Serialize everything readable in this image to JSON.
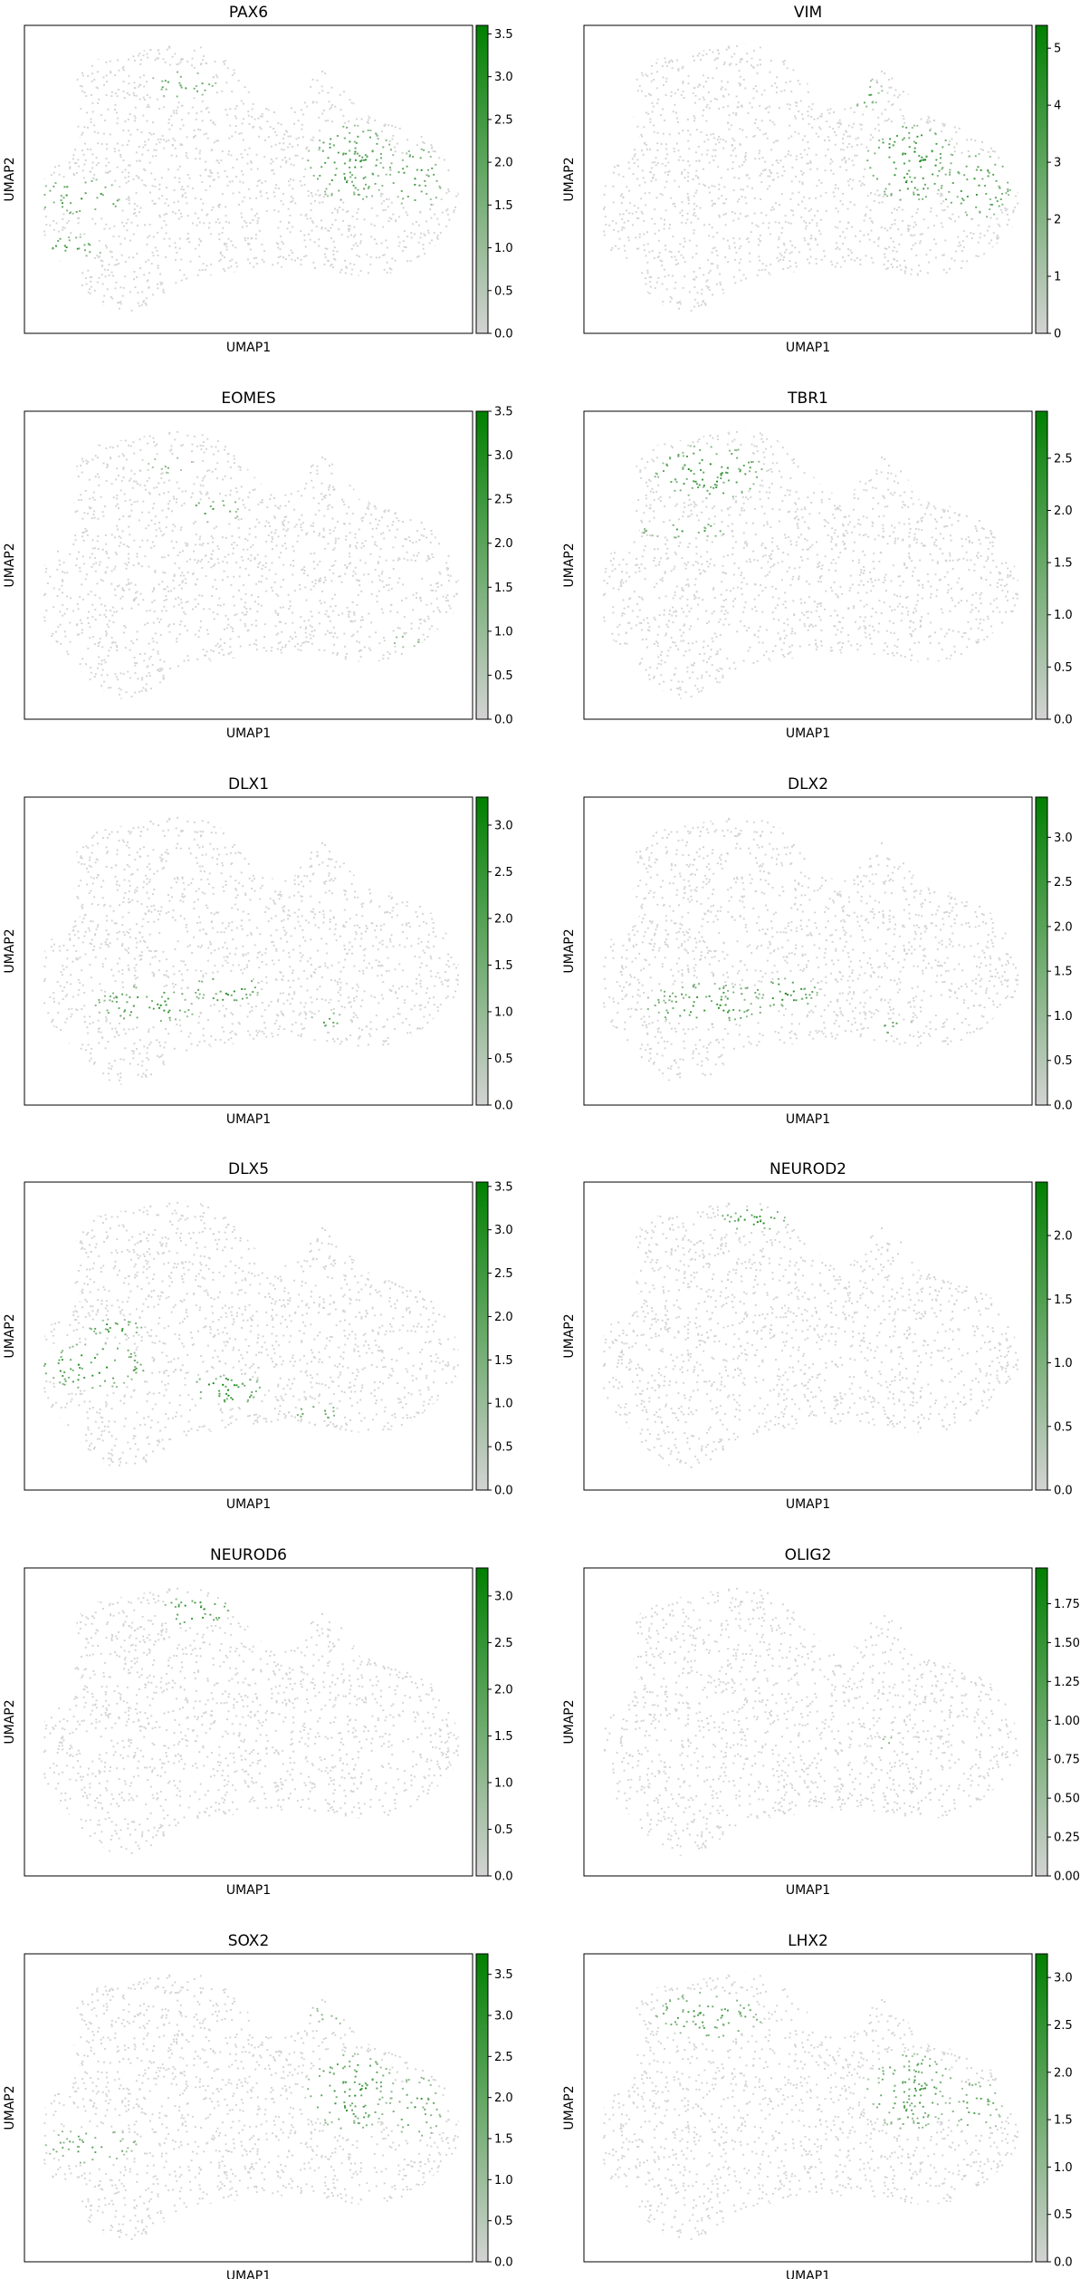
{
  "chart_data": [
    {
      "type": "scatter",
      "title": "PAX6",
      "xlabel": "UMAP1",
      "ylabel": "UMAP2",
      "colorbar": {
        "range": [
          0,
          3.6
        ],
        "ticks": [
          "0.0",
          "0.5",
          "1.0",
          "1.5",
          "2.0",
          "2.5",
          "3.0",
          "3.5"
        ],
        "tick_values": [
          0,
          0.5,
          1,
          1.5,
          2,
          2.5,
          3,
          3.5
        ]
      },
      "highlight_regions": [
        {
          "x": -0.75,
          "y": -0.12,
          "rx": 0.2,
          "ry": 0.12,
          "level": 0.85
        },
        {
          "x": -0.8,
          "y": -0.45,
          "rx": 0.15,
          "ry": 0.08,
          "level": 0.8
        },
        {
          "x": -0.3,
          "y": 0.62,
          "rx": 0.15,
          "ry": 0.1,
          "level": 0.7
        },
        {
          "x": 0.45,
          "y": 0.1,
          "rx": 0.2,
          "ry": 0.25,
          "level": 0.8
        },
        {
          "x": 0.75,
          "y": 0.0,
          "rx": 0.12,
          "ry": 0.2,
          "level": 0.75
        }
      ]
    },
    {
      "type": "scatter",
      "title": "VIM",
      "xlabel": "UMAP1",
      "ylabel": "UMAP2",
      "colorbar": {
        "range": [
          0,
          5.4
        ],
        "ticks": [
          "0",
          "1",
          "2",
          "3",
          "4",
          "5"
        ],
        "tick_values": [
          0,
          1,
          2,
          3,
          4,
          5
        ]
      },
      "highlight_regions": [
        {
          "x": 0.45,
          "y": 0.1,
          "rx": 0.2,
          "ry": 0.25,
          "level": 0.95
        },
        {
          "x": 0.75,
          "y": -0.05,
          "rx": 0.15,
          "ry": 0.22,
          "level": 0.8
        },
        {
          "x": 0.25,
          "y": 0.55,
          "rx": 0.1,
          "ry": 0.1,
          "level": 0.6
        }
      ]
    },
    {
      "type": "scatter",
      "title": "EOMES",
      "xlabel": "UMAP1",
      "ylabel": "UMAP2",
      "colorbar": {
        "range": [
          0,
          3.5
        ],
        "ticks": [
          "0.0",
          "0.5",
          "1.0",
          "1.5",
          "2.0",
          "2.5",
          "3.0",
          "3.5"
        ],
        "tick_values": [
          0,
          0.5,
          1,
          1.5,
          2,
          2.5,
          3,
          3.5
        ]
      },
      "highlight_regions": [
        {
          "x": -0.15,
          "y": 0.35,
          "rx": 0.12,
          "ry": 0.08,
          "level": 0.75
        },
        {
          "x": -0.35,
          "y": 0.65,
          "rx": 0.1,
          "ry": 0.06,
          "level": 0.5
        },
        {
          "x": 0.7,
          "y": -0.5,
          "rx": 0.06,
          "ry": 0.04,
          "level": 0.7
        }
      ]
    },
    {
      "type": "scatter",
      "title": "TBR1",
      "xlabel": "UMAP1",
      "ylabel": "UMAP2",
      "colorbar": {
        "range": [
          0,
          2.95
        ],
        "ticks": [
          "0.0",
          "0.5",
          "1.0",
          "1.5",
          "2.0",
          "2.5"
        ],
        "tick_values": [
          0,
          0.5,
          1,
          1.5,
          2,
          2.5
        ]
      },
      "highlight_regions": [
        {
          "x": -0.45,
          "y": 0.6,
          "rx": 0.25,
          "ry": 0.18,
          "level": 0.85
        },
        {
          "x": -0.55,
          "y": 0.22,
          "rx": 0.2,
          "ry": 0.05,
          "level": 0.8
        }
      ]
    },
    {
      "type": "scatter",
      "title": "DLX1",
      "xlabel": "UMAP1",
      "ylabel": "UMAP2",
      "colorbar": {
        "range": [
          0,
          3.3
        ],
        "ticks": [
          "0.0",
          "0.5",
          "1.0",
          "1.5",
          "2.0",
          "2.5",
          "3.0"
        ],
        "tick_values": [
          0,
          0.5,
          1,
          1.5,
          2,
          2.5,
          3
        ]
      },
      "highlight_regions": [
        {
          "x": -0.45,
          "y": -0.35,
          "rx": 0.25,
          "ry": 0.12,
          "level": 0.8
        },
        {
          "x": -0.1,
          "y": -0.25,
          "rx": 0.15,
          "ry": 0.1,
          "level": 0.85
        },
        {
          "x": 0.35,
          "y": -0.45,
          "rx": 0.08,
          "ry": 0.05,
          "level": 0.7
        }
      ]
    },
    {
      "type": "scatter",
      "title": "DLX2",
      "xlabel": "UMAP1",
      "ylabel": "UMAP2",
      "colorbar": {
        "range": [
          0,
          3.45
        ],
        "ticks": [
          "0.0",
          "0.5",
          "1.0",
          "1.5",
          "2.0",
          "2.5",
          "3.0"
        ],
        "tick_values": [
          0,
          0.5,
          1,
          1.5,
          2,
          2.5,
          3
        ]
      },
      "highlight_regions": [
        {
          "x": -0.45,
          "y": -0.35,
          "rx": 0.28,
          "ry": 0.14,
          "level": 0.8
        },
        {
          "x": -0.1,
          "y": -0.28,
          "rx": 0.15,
          "ry": 0.1,
          "level": 0.85
        },
        {
          "x": 0.4,
          "y": -0.5,
          "rx": 0.08,
          "ry": 0.05,
          "level": 0.75
        }
      ]
    },
    {
      "type": "scatter",
      "title": "DLX5",
      "xlabel": "UMAP1",
      "ylabel": "UMAP2",
      "colorbar": {
        "range": [
          0,
          3.55
        ],
        "ticks": [
          "0.0",
          "0.5",
          "1.0",
          "1.5",
          "2.0",
          "2.5",
          "3.0",
          "3.5"
        ],
        "tick_values": [
          0,
          0.5,
          1,
          1.5,
          2,
          2.5,
          3,
          3.5
        ]
      },
      "highlight_regions": [
        {
          "x": -0.7,
          "y": -0.2,
          "rx": 0.25,
          "ry": 0.15,
          "level": 0.9
        },
        {
          "x": -0.6,
          "y": 0.05,
          "rx": 0.12,
          "ry": 0.06,
          "level": 0.8
        },
        {
          "x": -0.1,
          "y": -0.35,
          "rx": 0.18,
          "ry": 0.1,
          "level": 0.9
        },
        {
          "x": 0.3,
          "y": -0.5,
          "rx": 0.1,
          "ry": 0.05,
          "level": 0.75
        }
      ]
    },
    {
      "type": "scatter",
      "title": "NEUROD2",
      "xlabel": "UMAP1",
      "ylabel": "UMAP2",
      "colorbar": {
        "range": [
          0,
          2.42
        ],
        "ticks": [
          "0.0",
          "0.5",
          "1.0",
          "1.5",
          "2.0"
        ],
        "tick_values": [
          0,
          0.5,
          1,
          1.5,
          2
        ]
      },
      "highlight_regions": [
        {
          "x": -0.25,
          "y": 0.75,
          "rx": 0.15,
          "ry": 0.08,
          "level": 0.85
        }
      ]
    },
    {
      "type": "scatter",
      "title": "NEUROD6",
      "xlabel": "UMAP1",
      "ylabel": "UMAP2",
      "colorbar": {
        "range": [
          0,
          3.3
        ],
        "ticks": [
          "0.0",
          "0.5",
          "1.0",
          "1.5",
          "2.0",
          "2.5",
          "3.0"
        ],
        "tick_values": [
          0,
          0.5,
          1,
          1.5,
          2,
          2.5,
          3
        ]
      },
      "highlight_regions": [
        {
          "x": -0.25,
          "y": 0.72,
          "rx": 0.16,
          "ry": 0.1,
          "level": 0.9
        }
      ]
    },
    {
      "type": "scatter",
      "title": "OLIG2",
      "xlabel": "UMAP1",
      "ylabel": "UMAP2",
      "colorbar": {
        "range": [
          0,
          1.98
        ],
        "ticks": [
          "0.00",
          "0.25",
          "0.50",
          "0.75",
          "1.00",
          "1.25",
          "1.50",
          "1.75"
        ],
        "tick_values": [
          0,
          0.25,
          0.5,
          0.75,
          1,
          1.25,
          1.5,
          1.75
        ]
      },
      "highlight_regions": [
        {
          "x": 0.35,
          "y": -0.15,
          "rx": 0.05,
          "ry": 0.05,
          "level": 0.4
        }
      ]
    },
    {
      "type": "scatter",
      "title": "SOX2",
      "xlabel": "UMAP1",
      "ylabel": "UMAP2",
      "colorbar": {
        "range": [
          0,
          3.75
        ],
        "ticks": [
          "0.0",
          "0.5",
          "1.0",
          "1.5",
          "2.0",
          "2.5",
          "3.0",
          "3.5"
        ],
        "tick_values": [
          0,
          0.5,
          1,
          1.5,
          2,
          2.5,
          3,
          3.5
        ]
      },
      "highlight_regions": [
        {
          "x": 0.45,
          "y": 0.1,
          "rx": 0.2,
          "ry": 0.25,
          "level": 0.85
        },
        {
          "x": 0.75,
          "y": 0.0,
          "rx": 0.12,
          "ry": 0.2,
          "level": 0.75
        },
        {
          "x": -0.7,
          "y": -0.25,
          "rx": 0.22,
          "ry": 0.12,
          "level": 0.65
        },
        {
          "x": 0.35,
          "y": 0.6,
          "rx": 0.08,
          "ry": 0.08,
          "level": 0.6
        }
      ]
    },
    {
      "type": "scatter",
      "title": "LHX2",
      "xlabel": "UMAP1",
      "ylabel": "UMAP2",
      "colorbar": {
        "range": [
          0,
          3.25
        ],
        "ticks": [
          "0.0",
          "0.5",
          "1.0",
          "1.5",
          "2.0",
          "2.5",
          "3.0"
        ],
        "tick_values": [
          0,
          0.5,
          1,
          1.5,
          2,
          2.5,
          3
        ]
      },
      "highlight_regions": [
        {
          "x": -0.45,
          "y": 0.6,
          "rx": 0.25,
          "ry": 0.15,
          "level": 0.75
        },
        {
          "x": 0.45,
          "y": 0.1,
          "rx": 0.2,
          "ry": 0.25,
          "level": 0.75
        },
        {
          "x": 0.75,
          "y": 0.0,
          "rx": 0.12,
          "ry": 0.18,
          "level": 0.65
        }
      ]
    }
  ],
  "colors": {
    "low": "#d3d3d3",
    "high": "#008000",
    "frame": "#000000"
  }
}
